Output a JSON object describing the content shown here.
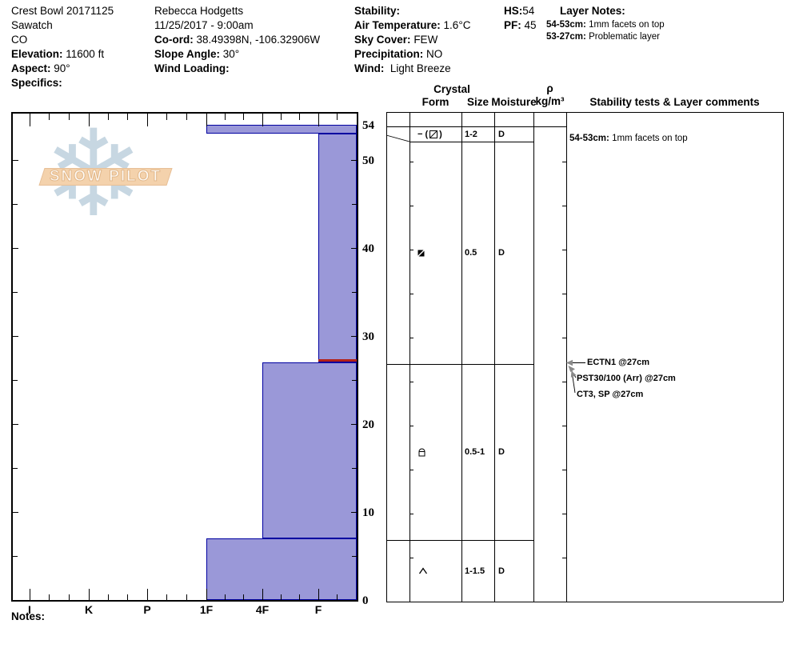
{
  "colors": {
    "bar_fill": "#9a98d8",
    "bar_border": "#0000a0",
    "flag_red": "#b32017",
    "logo_banner": "#f4d2ac",
    "logo_flake": "#c7d7e2",
    "arrow_gray": "#8a8a8a"
  },
  "header": {
    "col1": {
      "title": "Crest Bowl 20171125",
      "range": "Sawatch",
      "state": "CO",
      "elevation_label": "Elevation:",
      "elevation_value": "11600 ft",
      "aspect_label": "Aspect:",
      "aspect_value": "90°",
      "specifics_label": "Specifics:"
    },
    "col2": {
      "observer": "Rebecca Hodgetts",
      "datetime": "11/25/2017 - 9:00am",
      "coord_label": "Co-ord:",
      "coord_value": "38.49398N, -106.32906W",
      "slope_angle_label": "Slope Angle:",
      "slope_angle_value": "30°",
      "wind_loading_label": "Wind Loading:"
    },
    "col3": {
      "stability_label": "Stability:",
      "air_temp_label": "Air Temperature:",
      "air_temp_value": "1.6°C",
      "sky_label": "Sky Cover:",
      "sky_value": "FEW",
      "precip_label": "Precipitation:",
      "precip_value": "NO",
      "wind_label": "Wind:",
      "wind_value": "Light Breeze"
    },
    "totals": {
      "hs_label": "HS:",
      "hs_value": "54",
      "pf_label": "PF:",
      "pf_value": "45"
    },
    "layer_notes": {
      "title": "Layer Notes:",
      "notes": [
        {
          "range": "54-53cm:",
          "text": "1mm facets on top"
        },
        {
          "range": "53-27cm:",
          "text": "Problematic layer"
        }
      ]
    }
  },
  "logo": {
    "text": "SNOW PILOT"
  },
  "chart_data": {
    "type": "bar",
    "subtype": "snow-hardness-depth-profile",
    "title": "Snow pit hardness profile",
    "depth_unit": "cm",
    "depth_range": [
      0,
      54
    ],
    "depth_tick_labels": [
      54,
      50,
      40,
      30,
      20,
      10,
      0
    ],
    "depth_minor_tick_step_cm": 5,
    "hardness_categories": [
      "I",
      "K",
      "P",
      "1F",
      "4F",
      "F"
    ],
    "layers": [
      {
        "top_cm": 54,
        "bottom_cm": 53,
        "hardness": "1F",
        "grain_form_icon": "square-slash",
        "form_text_prefix": "− ( ",
        "form_text_suffix": " )",
        "size_mm": "1-2",
        "moisture": "D"
      },
      {
        "top_cm": 53,
        "bottom_cm": 27,
        "hardness": "F",
        "grain_form_icon": "filled-square-slash",
        "size_mm": "0.5",
        "moisture": "D",
        "flagged_bottom": true
      },
      {
        "top_cm": 27,
        "bottom_cm": 7,
        "hardness": "4F",
        "grain_form_icon": "dome-square",
        "size_mm": "0.5-1",
        "moisture": "D"
      },
      {
        "top_cm": 7,
        "bottom_cm": 0,
        "hardness": "1F",
        "grain_form_icon": "caret",
        "size_mm": "1-1.5",
        "moisture": "D"
      }
    ],
    "column_headers": {
      "crystal": "Crystal",
      "form": "Form",
      "size": "Size",
      "moisture": "Moisture",
      "rho": "ρ",
      "rho_units": "kg/m³",
      "stability": "Stability tests & Layer comments"
    },
    "stability_tests": [
      {
        "label": "ECTN1 @27cm",
        "at_cm": 27
      },
      {
        "label": "PST30/100 (Arr) @27cm",
        "at_cm": 27
      },
      {
        "label": "CT3, SP @27cm",
        "at_cm": 27
      }
    ],
    "layer_comments": [
      {
        "range": "54-53cm:",
        "text": "1mm facets on top",
        "at_cm": 54
      }
    ],
    "legend_position": "none",
    "grid": false
  },
  "notes_label": "Notes:"
}
